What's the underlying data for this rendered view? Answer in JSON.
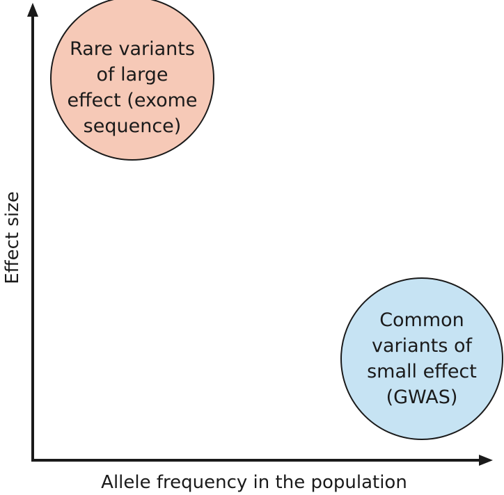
{
  "axes": {
    "x_label": "Allele frequency in the population",
    "y_label": "Effect size"
  },
  "bubbles": {
    "rare": {
      "lines": [
        "Rare variants",
        "of large",
        "effect (exome",
        "sequence)"
      ],
      "fill": "#f6c9b7",
      "stroke": "#1a1a1a"
    },
    "common": {
      "lines": [
        "Common",
        "variants of",
        "small effect",
        "(GWAS)"
      ],
      "fill": "#c6e3f3",
      "stroke": "#1a1a1a"
    }
  },
  "colors": {
    "axis": "#1a1a1a",
    "text": "#1a1a1a",
    "background": "#ffffff"
  }
}
